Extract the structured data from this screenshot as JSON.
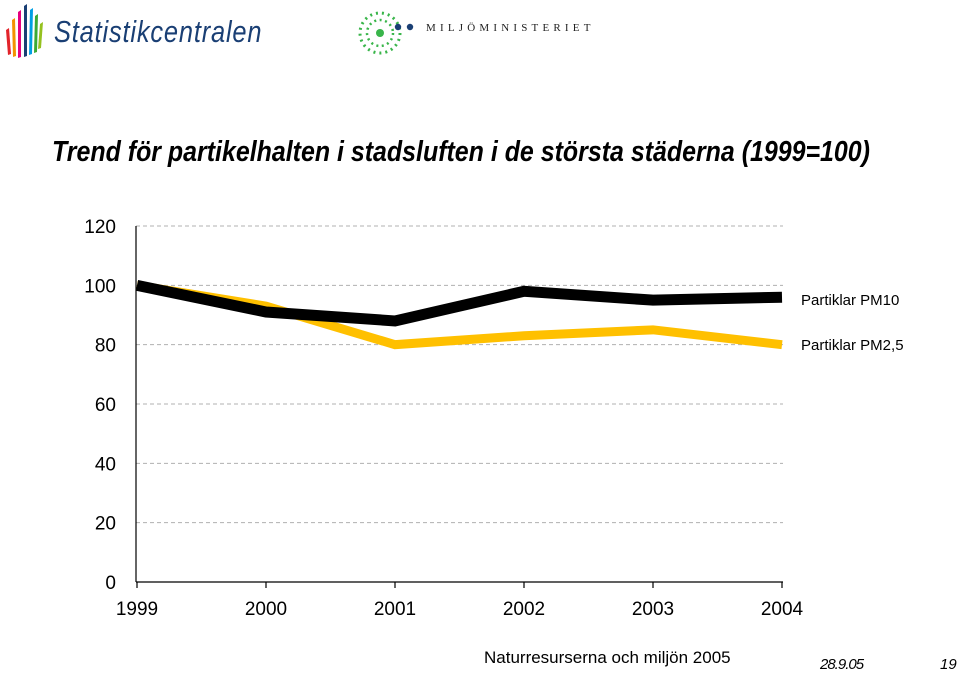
{
  "header": {
    "logo_left_text": "Statistikcentralen",
    "logo_right_text": "MILJÖMINISTERIET"
  },
  "colors": {
    "pm10": "#000000",
    "pm25": "#ffc000",
    "grid": "#b0b0b0",
    "brand_blue": "#1a3f74"
  },
  "chart_data": {
    "type": "line",
    "title": "Trend för partikelhalten i stadsluften i de största städerna (1999=100)",
    "xlabel": "",
    "ylabel": "",
    "categories": [
      "1999",
      "2000",
      "2001",
      "2002",
      "2003",
      "2004"
    ],
    "ylim": [
      0,
      120
    ],
    "yticks": [
      0,
      20,
      40,
      60,
      80,
      100,
      120
    ],
    "grid": true,
    "legend_position": "right",
    "series": [
      {
        "name": "Partiklar PM10",
        "values": [
          100,
          91,
          88,
          98,
          95,
          96
        ]
      },
      {
        "name": "Partiklar PM2,5",
        "values": [
          100,
          93,
          80,
          83,
          85,
          80
        ]
      }
    ]
  },
  "footer": {
    "source": "Naturresurserna och miljön 2005",
    "date": "28.9.05",
    "page": "19"
  }
}
